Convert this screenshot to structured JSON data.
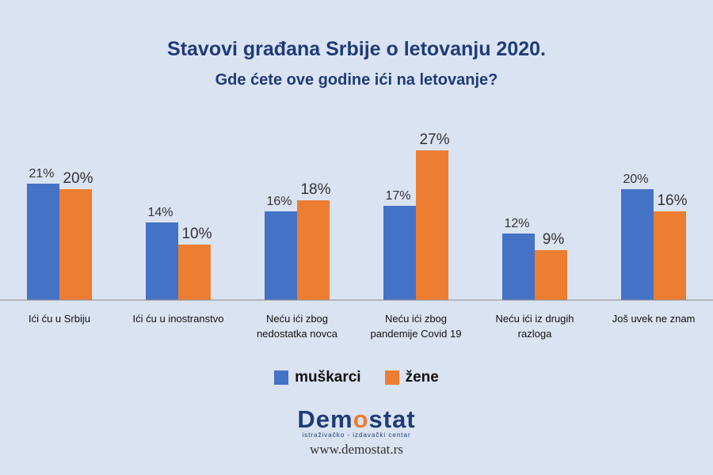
{
  "chart_data": {
    "type": "bar",
    "title": "Stavovi građana Srbije o letovanju 2020.",
    "subtitle": "Gde ćete ove godine ići na letovanje?",
    "categories": [
      [
        "Ići ću u Srbiju"
      ],
      [
        "Ići ću u inostranstvo"
      ],
      [
        "Neću ići zbog",
        "nedostatka novca"
      ],
      [
        "Neću ići zbog",
        "pandemije Covid 19"
      ],
      [
        "Neću ići iz drugih",
        "razloga"
      ],
      [
        "Još uvek ne znam"
      ]
    ],
    "series": [
      {
        "name": "muškarci",
        "color": "#4472c4",
        "values": [
          21,
          14,
          16,
          17,
          12,
          20
        ],
        "labels": [
          "21%",
          "14%",
          "16%",
          "17%",
          "12%",
          "20%"
        ]
      },
      {
        "name": "žene",
        "color": "#ed7d31",
        "values": [
          20,
          10,
          18,
          27,
          9,
          16
        ],
        "labels": [
          "20%",
          "10%",
          "18%",
          "27%",
          "9%",
          "16%"
        ]
      }
    ],
    "ylim": [
      0,
      27
    ],
    "grid": false,
    "legend_position": "bottom"
  },
  "footer": {
    "brand_part1": "Dem",
    "brand_o": "o",
    "brand_part2": "stat",
    "tagline": "istraživačko - izdavački centar",
    "url": "www.demostat.rs"
  }
}
